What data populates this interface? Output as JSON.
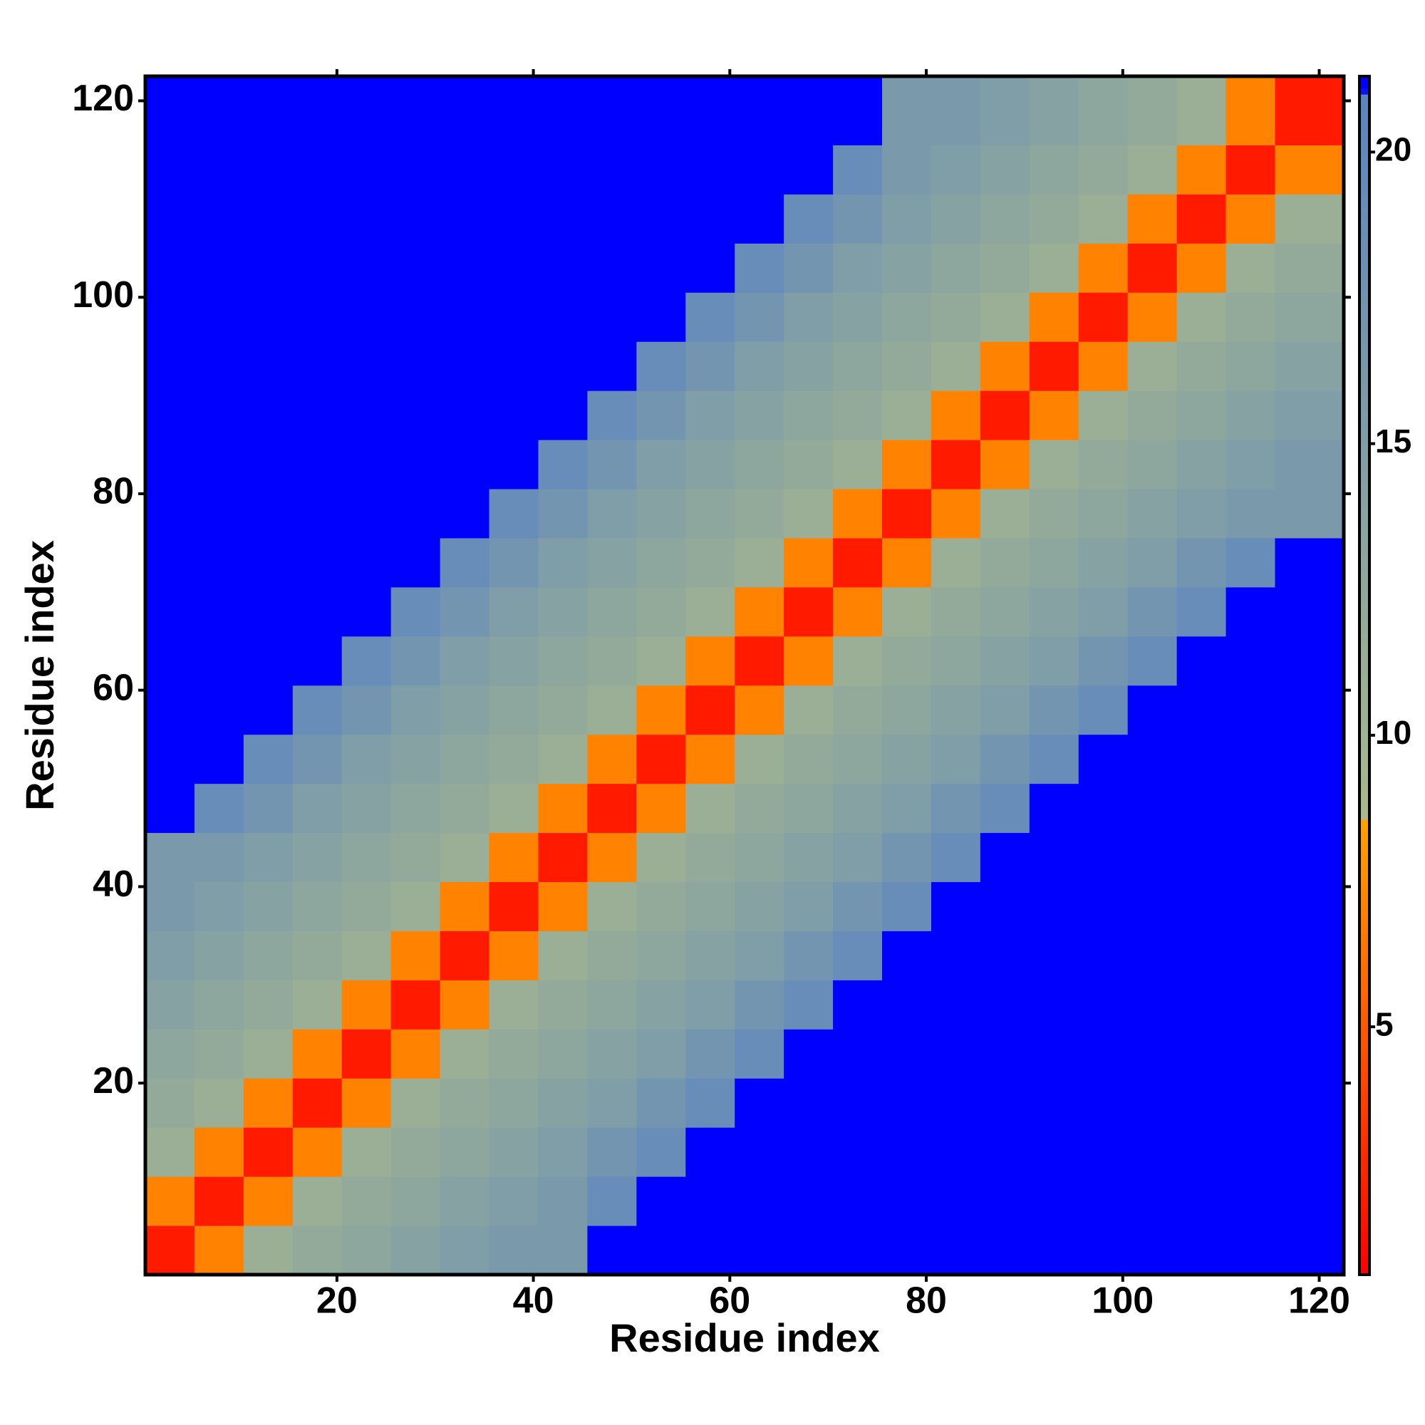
{
  "chart_data": {
    "type": "heatmap",
    "xlabel": "Residue index",
    "ylabel": "Residue index",
    "xlim": [
      0.5,
      122.5
    ],
    "ylim": [
      0.5,
      122.5
    ],
    "xticks": [
      20,
      40,
      60,
      80,
      100,
      120
    ],
    "yticks": [
      20,
      40,
      60,
      80,
      100,
      120
    ],
    "xbins": [
      0.5,
      5.5,
      10.5,
      15.5,
      20.5,
      25.5,
      30.5,
      35.5,
      40.5,
      45.5,
      50.5,
      55.5,
      60.5,
      65.5,
      70.5,
      75.5,
      80.5,
      85.5,
      90.5,
      95.5,
      100.5,
      105.5,
      110.5,
      115.5,
      122.5
    ],
    "ybins": [
      0.5,
      5.5,
      10.5,
      15.5,
      20.5,
      25.5,
      30.5,
      35.5,
      40.5,
      45.5,
      50.5,
      55.5,
      60.5,
      65.5,
      70.5,
      75.5,
      80.5,
      85.5,
      90.5,
      95.5,
      100.5,
      105.5,
      110.5,
      115.5,
      122.5
    ],
    "z": [
      [
        2,
        7,
        11,
        12,
        13,
        14,
        15,
        16,
        16,
        22,
        22,
        22,
        22,
        22,
        22,
        22,
        22,
        22,
        22,
        22,
        22,
        22,
        22,
        22
      ],
      [
        7,
        2,
        7,
        11,
        12,
        13,
        14,
        15,
        16,
        19,
        22,
        22,
        22,
        22,
        22,
        22,
        22,
        22,
        22,
        22,
        22,
        22,
        22,
        22
      ],
      [
        11,
        7,
        2,
        7,
        11,
        12,
        13,
        14,
        15,
        17,
        19,
        22,
        22,
        22,
        22,
        22,
        22,
        22,
        22,
        22,
        22,
        22,
        22,
        22
      ],
      [
        12,
        11,
        7,
        2,
        7,
        11,
        12,
        13,
        14,
        15,
        17,
        19,
        22,
        22,
        22,
        22,
        22,
        22,
        22,
        22,
        22,
        22,
        22,
        22
      ],
      [
        13,
        12,
        11,
        7,
        2,
        7,
        11,
        12,
        13,
        14,
        15,
        17,
        19,
        22,
        22,
        22,
        22,
        22,
        22,
        22,
        22,
        22,
        22,
        22
      ],
      [
        14,
        13,
        12,
        11,
        7,
        2,
        7,
        11,
        12,
        13,
        14,
        15,
        17,
        19,
        22,
        22,
        22,
        22,
        22,
        22,
        22,
        22,
        22,
        22
      ],
      [
        15,
        14,
        13,
        12,
        11,
        7,
        2,
        7,
        11,
        12,
        13,
        14,
        15,
        17,
        19,
        22,
        22,
        22,
        22,
        22,
        22,
        22,
        22,
        22
      ],
      [
        16,
        15,
        14,
        13,
        12,
        11,
        7,
        2,
        7,
        11,
        12,
        13,
        14,
        15,
        17,
        19,
        22,
        22,
        22,
        22,
        22,
        22,
        22,
        22
      ],
      [
        16,
        16,
        15,
        14,
        13,
        12,
        11,
        7,
        2,
        7,
        11,
        12,
        13,
        14,
        15,
        17,
        19,
        22,
        22,
        22,
        22,
        22,
        22,
        22
      ],
      [
        22,
        19,
        17,
        15,
        14,
        13,
        12,
        11,
        7,
        2,
        7,
        11,
        12,
        13,
        14,
        15,
        17,
        19,
        22,
        22,
        22,
        22,
        22,
        22
      ],
      [
        22,
        22,
        19,
        17,
        15,
        14,
        13,
        12,
        11,
        7,
        2,
        7,
        11,
        12,
        13,
        14,
        15,
        17,
        19,
        22,
        22,
        22,
        22,
        22
      ],
      [
        22,
        22,
        22,
        19,
        17,
        15,
        14,
        13,
        12,
        11,
        7,
        2,
        7,
        11,
        12,
        13,
        14,
        15,
        17,
        19,
        22,
        22,
        22,
        22
      ],
      [
        22,
        22,
        22,
        22,
        19,
        17,
        15,
        14,
        13,
        12,
        11,
        7,
        2,
        7,
        11,
        12,
        13,
        14,
        15,
        17,
        19,
        22,
        22,
        22
      ],
      [
        22,
        22,
        22,
        22,
        22,
        19,
        17,
        15,
        14,
        13,
        12,
        11,
        7,
        2,
        7,
        11,
        12,
        13,
        14,
        15,
        17,
        19,
        22,
        22
      ],
      [
        22,
        22,
        22,
        22,
        22,
        22,
        19,
        17,
        15,
        14,
        13,
        12,
        11,
        7,
        2,
        7,
        11,
        12,
        13,
        14,
        15,
        17,
        19,
        22
      ],
      [
        22,
        22,
        22,
        22,
        22,
        22,
        22,
        19,
        17,
        15,
        14,
        13,
        12,
        11,
        7,
        2,
        7,
        11,
        12,
        13,
        14,
        15,
        16,
        16
      ],
      [
        22,
        22,
        22,
        22,
        22,
        22,
        22,
        22,
        19,
        17,
        15,
        14,
        13,
        12,
        11,
        7,
        2,
        7,
        11,
        12,
        13,
        14,
        15,
        16
      ],
      [
        22,
        22,
        22,
        22,
        22,
        22,
        22,
        22,
        22,
        19,
        17,
        15,
        14,
        13,
        12,
        11,
        7,
        2,
        7,
        11,
        12,
        13,
        14,
        15
      ],
      [
        22,
        22,
        22,
        22,
        22,
        22,
        22,
        22,
        22,
        22,
        19,
        17,
        15,
        14,
        13,
        12,
        11,
        7,
        2,
        7,
        11,
        12,
        13,
        14
      ],
      [
        22,
        22,
        22,
        22,
        22,
        22,
        22,
        22,
        22,
        22,
        22,
        19,
        17,
        15,
        14,
        13,
        12,
        11,
        7,
        2,
        7,
        11,
        12,
        13
      ],
      [
        22,
        22,
        22,
        22,
        22,
        22,
        22,
        22,
        22,
        22,
        22,
        22,
        19,
        17,
        15,
        14,
        13,
        12,
        11,
        7,
        2,
        7,
        11,
        12
      ],
      [
        22,
        22,
        22,
        22,
        22,
        22,
        22,
        22,
        22,
        22,
        22,
        22,
        22,
        19,
        17,
        15,
        14,
        13,
        12,
        11,
        7,
        2,
        7,
        11
      ],
      [
        22,
        22,
        22,
        22,
        22,
        22,
        22,
        22,
        22,
        22,
        22,
        22,
        22,
        22,
        19,
        16,
        15,
        14,
        13,
        12,
        11,
        7,
        2,
        7
      ],
      [
        22,
        22,
        22,
        22,
        22,
        22,
        22,
        22,
        22,
        22,
        22,
        22,
        22,
        22,
        22,
        16,
        16,
        15,
        14,
        13,
        12,
        11,
        7,
        2
      ]
    ],
    "colorscale": [
      [
        0.75,
        "#ff0000"
      ],
      [
        5,
        "#ff5a00"
      ],
      [
        8.5,
        "#ffa000"
      ],
      [
        8.6,
        "#a9b98c"
      ],
      [
        21,
        "#5a84c0"
      ],
      [
        21.05,
        "#0000ff"
      ],
      [
        21.3,
        "#0000ff"
      ]
    ],
    "clim": [
      0.75,
      21.3
    ],
    "cticks": [
      5,
      10,
      15,
      20
    ]
  }
}
